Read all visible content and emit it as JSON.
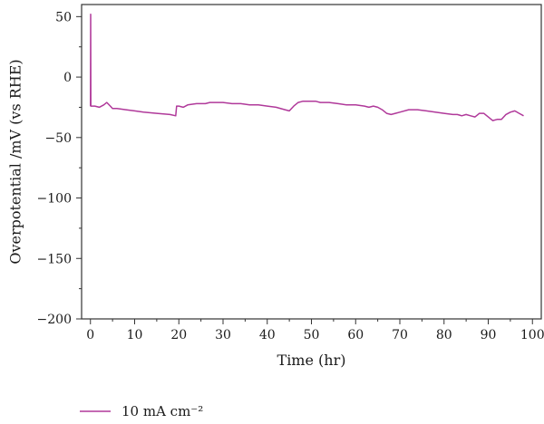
{
  "chart_data": {
    "type": "line",
    "xlabel": "Time (hr)",
    "ylabel": "Overpotential /mV (vs RHE)",
    "xlim": [
      -2,
      102
    ],
    "ylim": [
      -200,
      60
    ],
    "x_ticks": [
      0,
      10,
      20,
      30,
      40,
      50,
      60,
      70,
      80,
      90,
      100
    ],
    "x_tick_labels": [
      "0",
      "10",
      "20",
      "30",
      "40",
      "50",
      "60",
      "70",
      "80",
      "90",
      "100"
    ],
    "y_ticks": [
      50,
      0,
      -50,
      -100,
      -150,
      -200
    ],
    "y_tick_labels": [
      "50",
      "0",
      "−50",
      "−100",
      "−150",
      "−200"
    ],
    "grid": false,
    "legend_position": "bottom-left",
    "series": [
      {
        "name": "10 mA cm⁻²",
        "color": "#b0399a",
        "x": [
          0,
          0.05,
          0.1,
          0.3,
          1,
          2,
          3,
          3.7,
          4.5,
          5,
          6,
          8,
          10,
          12,
          15,
          18,
          19.3,
          19.5,
          20,
          21,
          22,
          24,
          26,
          27,
          28,
          30,
          32,
          34,
          36,
          38,
          40,
          42,
          44,
          45,
          46,
          47,
          48,
          49,
          50,
          51,
          52,
          54,
          56,
          58,
          60,
          62,
          63,
          64,
          65,
          66,
          67,
          68,
          69,
          70,
          72,
          74,
          76,
          78,
          80,
          82,
          83,
          84,
          85,
          86,
          87,
          88,
          89,
          90,
          91,
          92,
          93,
          94,
          95,
          96,
          97,
          98
        ],
        "values": [
          -24,
          52,
          -24,
          -24,
          -24,
          -25,
          -23,
          -21,
          -24,
          -26,
          -26,
          -27,
          -28,
          -29,
          -30,
          -31,
          -32,
          -24,
          -24,
          -25,
          -23,
          -22,
          -22,
          -21,
          -21,
          -21,
          -22,
          -22,
          -23,
          -23,
          -24,
          -25,
          -27,
          -28,
          -24,
          -21,
          -20,
          -20,
          -20,
          -20,
          -21,
          -21,
          -22,
          -23,
          -23,
          -24,
          -25,
          -24,
          -25,
          -27,
          -30,
          -31,
          -30,
          -29,
          -27,
          -27,
          -28,
          -29,
          -30,
          -31,
          -31,
          -32,
          -31,
          -32,
          -33,
          -30,
          -30,
          -33,
          -36,
          -35,
          -35,
          -31,
          -29,
          -28,
          -30,
          -32
        ]
      }
    ]
  }
}
